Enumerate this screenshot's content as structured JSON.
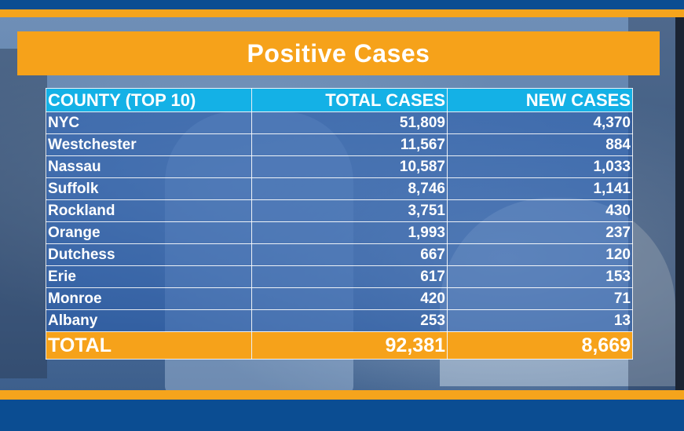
{
  "title": "Positive Cases",
  "headers": {
    "county": "COUNTY (TOP 10)",
    "total": "TOTAL CASES",
    "new": "NEW CASES"
  },
  "rows": [
    {
      "county": "NYC",
      "total": "51,809",
      "new": "4,370"
    },
    {
      "county": "Westchester",
      "total": "11,567",
      "new": "884"
    },
    {
      "county": "Nassau",
      "total": "10,587",
      "new": "1,033"
    },
    {
      "county": "Suffolk",
      "total": "8,746",
      "new": "1,141"
    },
    {
      "county": "Rockland",
      "total": "3,751",
      "new": "430"
    },
    {
      "county": "Orange",
      "total": "1,993",
      "new": "237"
    },
    {
      "county": "Dutchess",
      "total": "667",
      "new": "120"
    },
    {
      "county": "Erie",
      "total": "617",
      "new": "153"
    },
    {
      "county": "Monroe",
      "total": "420",
      "new": "71"
    },
    {
      "county": "Albany",
      "total": "253",
      "new": "13"
    }
  ],
  "total_row": {
    "label": "TOTAL",
    "total": "92,381",
    "new": "8,669"
  },
  "colors": {
    "banner": "#f6a21a",
    "header": "#14b1e6",
    "row": "#265aaa",
    "frame": "#0b4d92"
  }
}
